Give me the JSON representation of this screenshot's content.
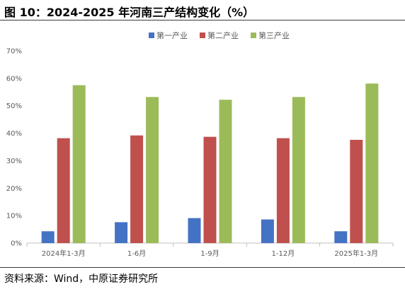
{
  "figure_title": "图 10：2024-2025 年河南三产结构变化（%）",
  "source": "资料来源：Wind，中原证券研究所",
  "chart_data": {
    "type": "bar",
    "title": "",
    "xlabel": "",
    "ylabel": "",
    "categories": [
      "2024年1-3月",
      "1-6月",
      "1-9月",
      "1-12月",
      "2025年1-3月"
    ],
    "series": [
      {
        "name": "第一产业",
        "color": "#4472C4",
        "values": [
          4.3,
          7.6,
          9.1,
          8.6,
          4.3
        ]
      },
      {
        "name": "第二产业",
        "color": "#C0504D",
        "values": [
          38.2,
          39.2,
          38.7,
          38.2,
          37.6
        ]
      },
      {
        "name": "第三产业",
        "color": "#9BBB59",
        "values": [
          57.5,
          53.2,
          52.2,
          53.2,
          58.1
        ]
      }
    ],
    "ylim": [
      0,
      70
    ],
    "yticks": [
      0,
      10,
      20,
      30,
      40,
      50,
      60,
      70
    ],
    "ytick_labels": [
      "0%",
      "10%",
      "20%",
      "30%",
      "40%",
      "50%",
      "60%",
      "70%"
    ],
    "grid": false,
    "legend_position": "top-center"
  }
}
